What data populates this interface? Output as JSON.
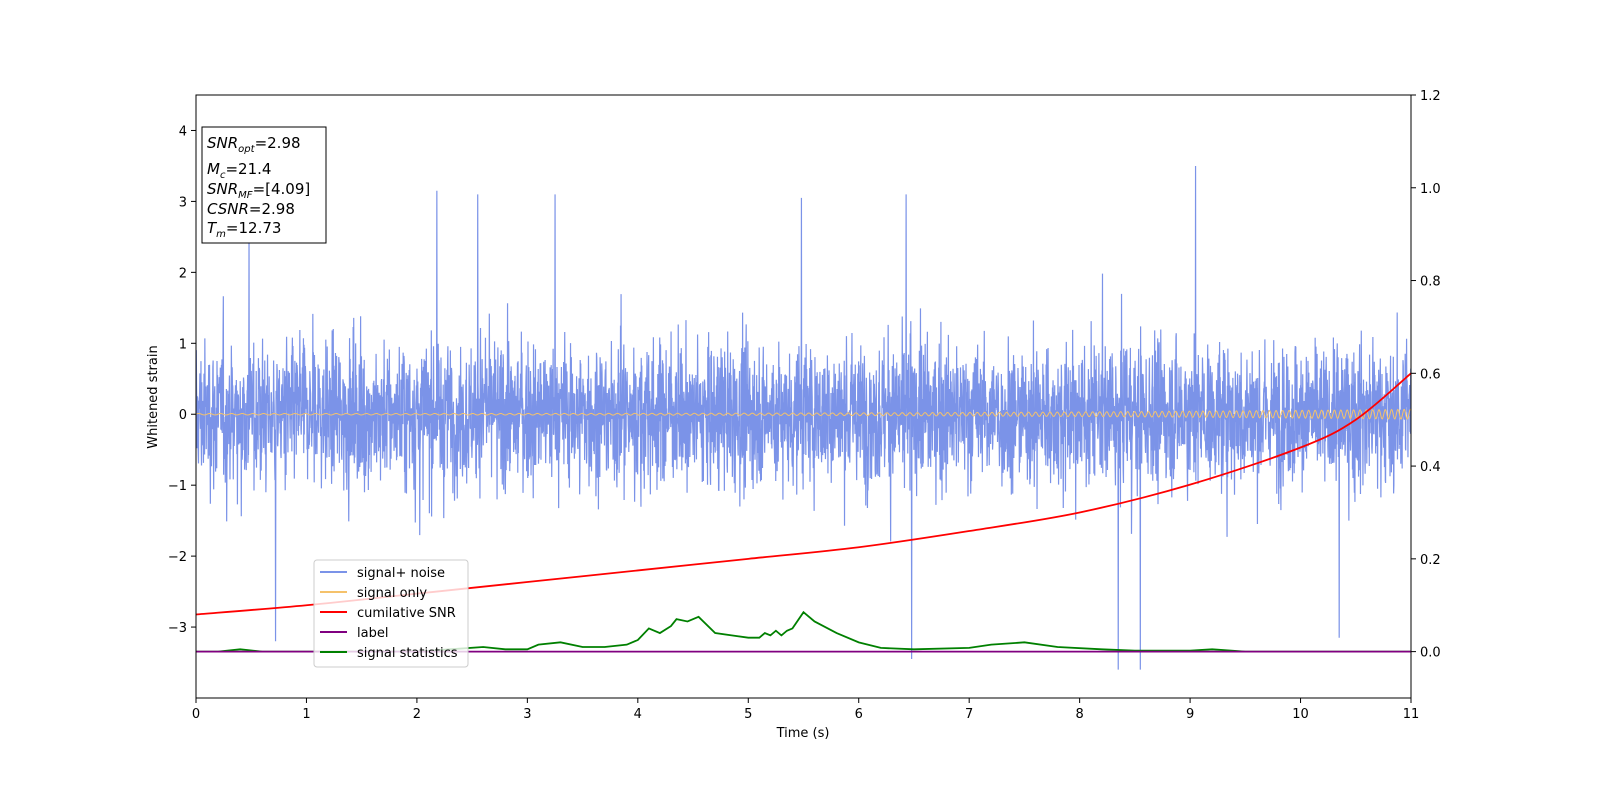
{
  "chart_data": {
    "type": "line",
    "xlabel": "Time (s)",
    "ylabel": "Whitened strain",
    "xlim": [
      0,
      11
    ],
    "ylim": [
      -4,
      4.5
    ],
    "y2lim": [
      -0.1,
      1.2
    ],
    "x_ticks": [
      0,
      1,
      2,
      3,
      4,
      5,
      6,
      7,
      8,
      9,
      10,
      11
    ],
    "x_tick_labels": [
      "0",
      "1",
      "2",
      "3",
      "4",
      "5",
      "6",
      "7",
      "8",
      "9",
      "10",
      "11"
    ],
    "y_ticks": [
      -3,
      -2,
      -1,
      0,
      1,
      2,
      3,
      4
    ],
    "y_tick_labels": [
      "−3",
      "−2",
      "−1",
      "0",
      "1",
      "2",
      "3",
      "4"
    ],
    "y2_ticks": [
      0.0,
      0.2,
      0.4,
      0.6,
      0.8,
      1.0,
      1.2
    ],
    "y2_tick_labels": [
      "0.0",
      "0.2",
      "0.4",
      "0.6",
      "0.8",
      "1.0",
      "1.2"
    ],
    "grid": false,
    "legend_position": "lower-left",
    "annotation": {
      "snr_opt": {
        "sym": "SNR",
        "sub": "opt",
        "value": "=2.98"
      },
      "mc": {
        "sym": "M",
        "sub": "c",
        "value": "=21.4"
      },
      "snr_mf": {
        "sym": "SNR",
        "sub": "MF",
        "value": "=[4.09]"
      },
      "csnr": {
        "sym": "CSNR",
        "value": "=2.98"
      },
      "tm": {
        "sym": "T",
        "sub": "m",
        "value": "=12.73"
      }
    },
    "series": [
      {
        "name": "signal+ noise",
        "axis": "left",
        "color": "#7b93e8",
        "description": "dense noisy strain around 0, amplitude mostly within ±2, peaks to about 3.5 and down to -3.6",
        "envelope": {
          "typical_half_range": 1.6,
          "max": 3.5,
          "min": -3.6
        },
        "spikes": [
          [
            0.48,
            2.6
          ],
          [
            0.72,
            -3.2
          ],
          [
            2.18,
            3.15
          ],
          [
            2.55,
            3.1
          ],
          [
            3.25,
            3.1
          ],
          [
            5.48,
            3.05
          ],
          [
            6.43,
            3.1
          ],
          [
            6.48,
            -3.45
          ],
          [
            8.35,
            -3.6
          ],
          [
            8.55,
            -3.6
          ],
          [
            9.05,
            3.5
          ],
          [
            10.35,
            -3.15
          ]
        ]
      },
      {
        "name": "signal only",
        "axis": "left",
        "color": "#f5c26b",
        "description": "chirp signal near 0, amplitude growing with time",
        "amplitude_start": 0.01,
        "amplitude_end": 0.07
      },
      {
        "name": "cumilative SNR",
        "axis": "right",
        "color": "#ff0000",
        "x": [
          0,
          1,
          2,
          3,
          4,
          5,
          6,
          7,
          8,
          9,
          10,
          10.5,
          11
        ],
        "y": [
          0.08,
          0.1,
          0.125,
          0.15,
          0.175,
          0.2,
          0.225,
          0.26,
          0.3,
          0.36,
          0.44,
          0.5,
          0.6
        ]
      },
      {
        "name": "label",
        "axis": "right",
        "color": "#800080",
        "x": [
          0,
          11
        ],
        "y": [
          0.0,
          0.0
        ]
      },
      {
        "name": "signal statistics",
        "axis": "right",
        "color": "#008000",
        "x": [
          0,
          0.2,
          0.4,
          0.6,
          1.0,
          1.5,
          2.0,
          2.3,
          2.6,
          2.8,
          3.0,
          3.1,
          3.3,
          3.5,
          3.7,
          3.9,
          4.0,
          4.1,
          4.2,
          4.3,
          4.35,
          4.45,
          4.55,
          4.7,
          4.85,
          5.0,
          5.1,
          5.15,
          5.2,
          5.25,
          5.3,
          5.35,
          5.4,
          5.5,
          5.6,
          5.8,
          6.0,
          6.2,
          6.5,
          7.0,
          7.2,
          7.5,
          7.8,
          8.2,
          8.5,
          9.0,
          9.2,
          9.5,
          10.0,
          10.5,
          11.0
        ],
        "y": [
          0.0,
          0.0,
          0.005,
          0.0,
          0.0,
          0.0,
          0.0,
          0.005,
          0.01,
          0.005,
          0.005,
          0.015,
          0.02,
          0.01,
          0.01,
          0.015,
          0.025,
          0.05,
          0.04,
          0.055,
          0.07,
          0.065,
          0.075,
          0.04,
          0.035,
          0.03,
          0.03,
          0.04,
          0.035,
          0.045,
          0.035,
          0.045,
          0.05,
          0.085,
          0.065,
          0.04,
          0.02,
          0.008,
          0.005,
          0.008,
          0.015,
          0.02,
          0.01,
          0.005,
          0.002,
          0.002,
          0.005,
          0.0,
          0.0,
          0.0,
          0.0
        ]
      }
    ]
  }
}
